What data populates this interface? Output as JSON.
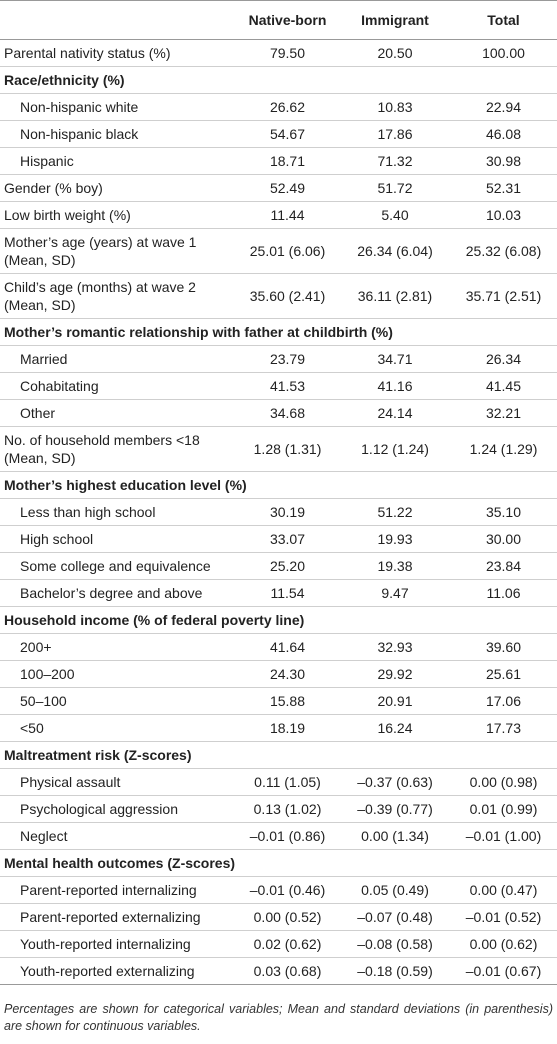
{
  "table": {
    "columns": [
      "Native-born",
      "Immigrant",
      "Total"
    ],
    "rows": [
      {
        "label": "Parental nativity status (%)",
        "values": [
          "79.50",
          "20.50",
          "100.00"
        ]
      },
      {
        "heading": "Race/ethnicity (%)",
        "rows": [
          {
            "label": "Non-hispanic white",
            "values": [
              "26.62",
              "10.83",
              "22.94"
            ]
          },
          {
            "label": "Non-hispanic black",
            "values": [
              "54.67",
              "17.86",
              "46.08"
            ]
          },
          {
            "label": "Hispanic",
            "values": [
              "18.71",
              "71.32",
              "30.98"
            ]
          }
        ]
      },
      {
        "label": "Gender (% boy)",
        "values": [
          "52.49",
          "51.72",
          "52.31"
        ]
      },
      {
        "label": "Low birth weight (%)",
        "values": [
          "11.44",
          "5.40",
          "10.03"
        ]
      },
      {
        "label": "Mother’s age (years) at wave 1 (Mean, SD)",
        "values": [
          "25.01 (6.06)",
          "26.34 (6.04)",
          "25.32 (6.08)"
        ]
      },
      {
        "label": "Child’s age (months) at wave 2 (Mean, SD)",
        "values": [
          "35.60 (2.41)",
          "36.11 (2.81)",
          "35.71 (2.51)"
        ]
      },
      {
        "heading": "Mother’s romantic relationship with father at childbirth (%)",
        "rows": [
          {
            "label": "Married",
            "values": [
              "23.79",
              "34.71",
              "26.34"
            ]
          },
          {
            "label": "Cohabitating",
            "values": [
              "41.53",
              "41.16",
              "41.45"
            ]
          },
          {
            "label": "Other",
            "values": [
              "34.68",
              "24.14",
              "32.21"
            ]
          }
        ]
      },
      {
        "label": "No. of household members <18 (Mean, SD)",
        "values": [
          "1.28 (1.31)",
          "1.12 (1.24)",
          "1.24 (1.29)"
        ]
      },
      {
        "heading": "Mother’s highest education level (%)",
        "rows": [
          {
            "label": "Less than high school",
            "values": [
              "30.19",
              "51.22",
              "35.10"
            ]
          },
          {
            "label": "High school",
            "values": [
              "33.07",
              "19.93",
              "30.00"
            ]
          },
          {
            "label": "Some college and equivalence",
            "values": [
              "25.20",
              "19.38",
              "23.84"
            ]
          },
          {
            "label": "Bachelor’s degree and above",
            "values": [
              "11.54",
              "9.47",
              "11.06"
            ]
          }
        ]
      },
      {
        "heading": "Household income (% of federal poverty line)",
        "rows": [
          {
            "label": "200+",
            "values": [
              "41.64",
              "32.93",
              "39.60"
            ]
          },
          {
            "label": "100–200",
            "values": [
              "24.30",
              "29.92",
              "25.61"
            ]
          },
          {
            "label": "50–100",
            "values": [
              "15.88",
              "20.91",
              "17.06"
            ]
          },
          {
            "label": "<50",
            "values": [
              "18.19",
              "16.24",
              "17.73"
            ]
          }
        ]
      },
      {
        "heading": "Maltreatment risk (Z-scores)",
        "rows": [
          {
            "label": "Physical assault",
            "values": [
              "0.11 (1.05)",
              "–0.37 (0.63)",
              "0.00 (0.98)"
            ]
          },
          {
            "label": "Psychological aggression",
            "values": [
              "0.13 (1.02)",
              "–0.39 (0.77)",
              "0.01 (0.99)"
            ]
          },
          {
            "label": "Neglect",
            "values": [
              "–0.01 (0.86)",
              "0.00 (1.34)",
              "–0.01 (1.00)"
            ]
          }
        ]
      },
      {
        "heading": "Mental health outcomes (Z-scores)",
        "rows": [
          {
            "label": "Parent-reported internalizing",
            "values": [
              "–0.01 (0.46)",
              "0.05 (0.49)",
              "0.00 (0.47)"
            ]
          },
          {
            "label": "Parent-reported externalizing",
            "values": [
              "0.00 (0.52)",
              "–0.07 (0.48)",
              "–0.01 (0.52)"
            ]
          },
          {
            "label": "Youth-reported internalizing",
            "values": [
              "0.02 (0.62)",
              "–0.08 (0.58)",
              "0.00 (0.62)"
            ]
          },
          {
            "label": "Youth-reported externalizing",
            "values": [
              "0.03 (0.68)",
              "–0.18 (0.59)",
              "–0.01 (0.67)"
            ]
          }
        ]
      }
    ],
    "note": "Percentages are shown for categorical variables; Mean and standard deviations (in parenthesis) are shown for continuous variables."
  }
}
